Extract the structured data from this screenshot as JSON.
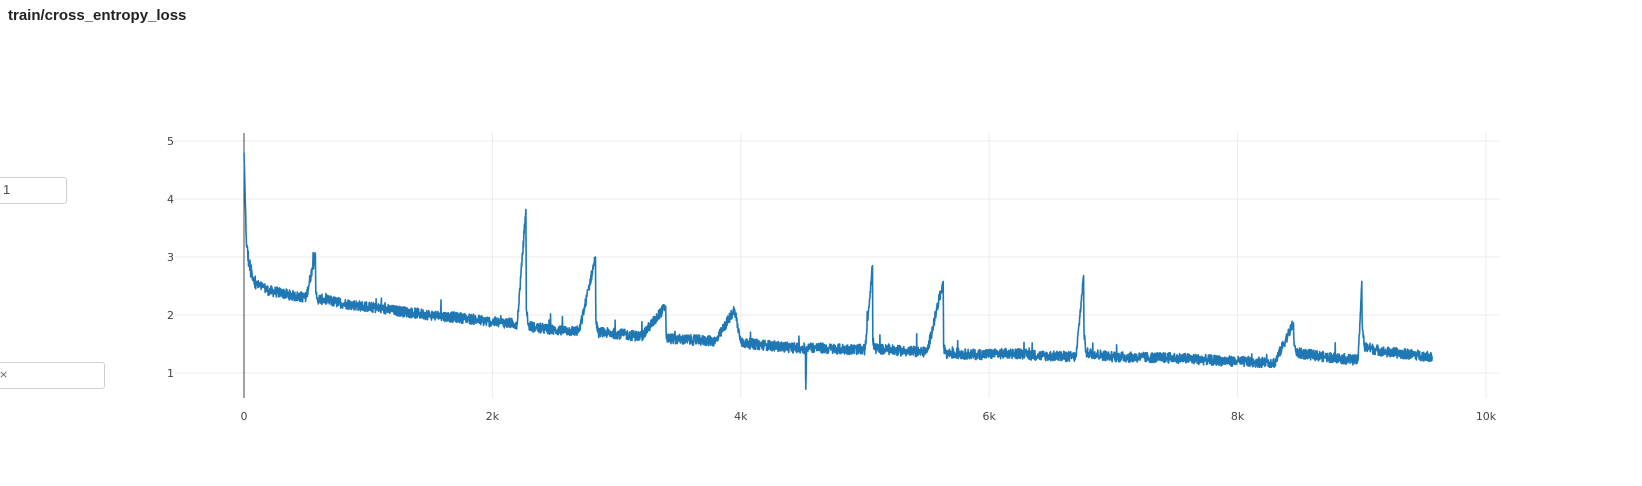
{
  "panel": {
    "title": "train/cross_entropy_loss"
  },
  "controls": {
    "top_field_value": "1",
    "bottom_field_close_label": "×"
  },
  "colors": {
    "line": "#1f77b4",
    "grid": "#ebebeb",
    "zero_line": "#444444",
    "tick_text": "#444444"
  },
  "chart_data": {
    "type": "line",
    "title": "train/cross_entropy_loss",
    "xlabel": "",
    "ylabel": "",
    "xlim": [
      0,
      10200
    ],
    "ylim": [
      0.55,
      5.15
    ],
    "x_ticks": [
      0,
      2000,
      4000,
      6000,
      8000,
      10000
    ],
    "x_tick_labels": [
      "0",
      "2k",
      "4k",
      "6k",
      "8k",
      "10k"
    ],
    "y_ticks": [
      1,
      2,
      3,
      4,
      5
    ],
    "y_tick_labels": [
      "1",
      "2",
      "3",
      "4",
      "5"
    ],
    "grid": true,
    "legend": "none",
    "series": [
      {
        "x": [
          0,
          10,
          20,
          40,
          70,
          100,
          150,
          200,
          300,
          400,
          500,
          575,
          578,
          590,
          650,
          800,
          1000,
          1200,
          1500,
          1800,
          2000,
          2200,
          2270,
          2273,
          2290,
          2350,
          2500,
          2700,
          2830,
          2833,
          2850,
          3000,
          3200,
          3395,
          3400,
          3500,
          3800,
          3950,
          4000,
          4200,
          4400,
          4520,
          4523,
          4530,
          4700,
          5000,
          5060,
          5063,
          5080,
          5300,
          5500,
          5630,
          5633,
          5650,
          5900,
          6200,
          6400,
          6700,
          6760,
          6763,
          6780,
          7000,
          7200,
          7500,
          7800,
          8000,
          8300,
          8450,
          8453,
          8470,
          8700,
          8970,
          9000,
          9003,
          9020,
          9200,
          9400,
          9570
        ],
        "y": [
          4.8,
          4.0,
          3.2,
          2.9,
          2.6,
          2.52,
          2.48,
          2.42,
          2.38,
          2.33,
          2.3,
          3.05,
          2.4,
          2.28,
          2.26,
          2.2,
          2.14,
          2.08,
          2.0,
          1.94,
          1.88,
          1.85,
          3.82,
          2.1,
          1.82,
          1.78,
          1.74,
          1.72,
          3.0,
          1.9,
          1.7,
          1.68,
          1.63,
          2.15,
          1.6,
          1.58,
          1.55,
          2.1,
          1.52,
          1.48,
          1.44,
          1.42,
          0.72,
          1.45,
          1.42,
          1.4,
          2.85,
          1.55,
          1.42,
          1.38,
          1.36,
          2.58,
          1.45,
          1.34,
          1.32,
          1.34,
          1.3,
          1.28,
          2.68,
          1.7,
          1.35,
          1.28,
          1.27,
          1.26,
          1.22,
          1.2,
          1.18,
          1.86,
          1.55,
          1.35,
          1.28,
          1.22,
          2.58,
          1.85,
          1.45,
          1.36,
          1.32,
          1.28
        ]
      }
    ]
  }
}
